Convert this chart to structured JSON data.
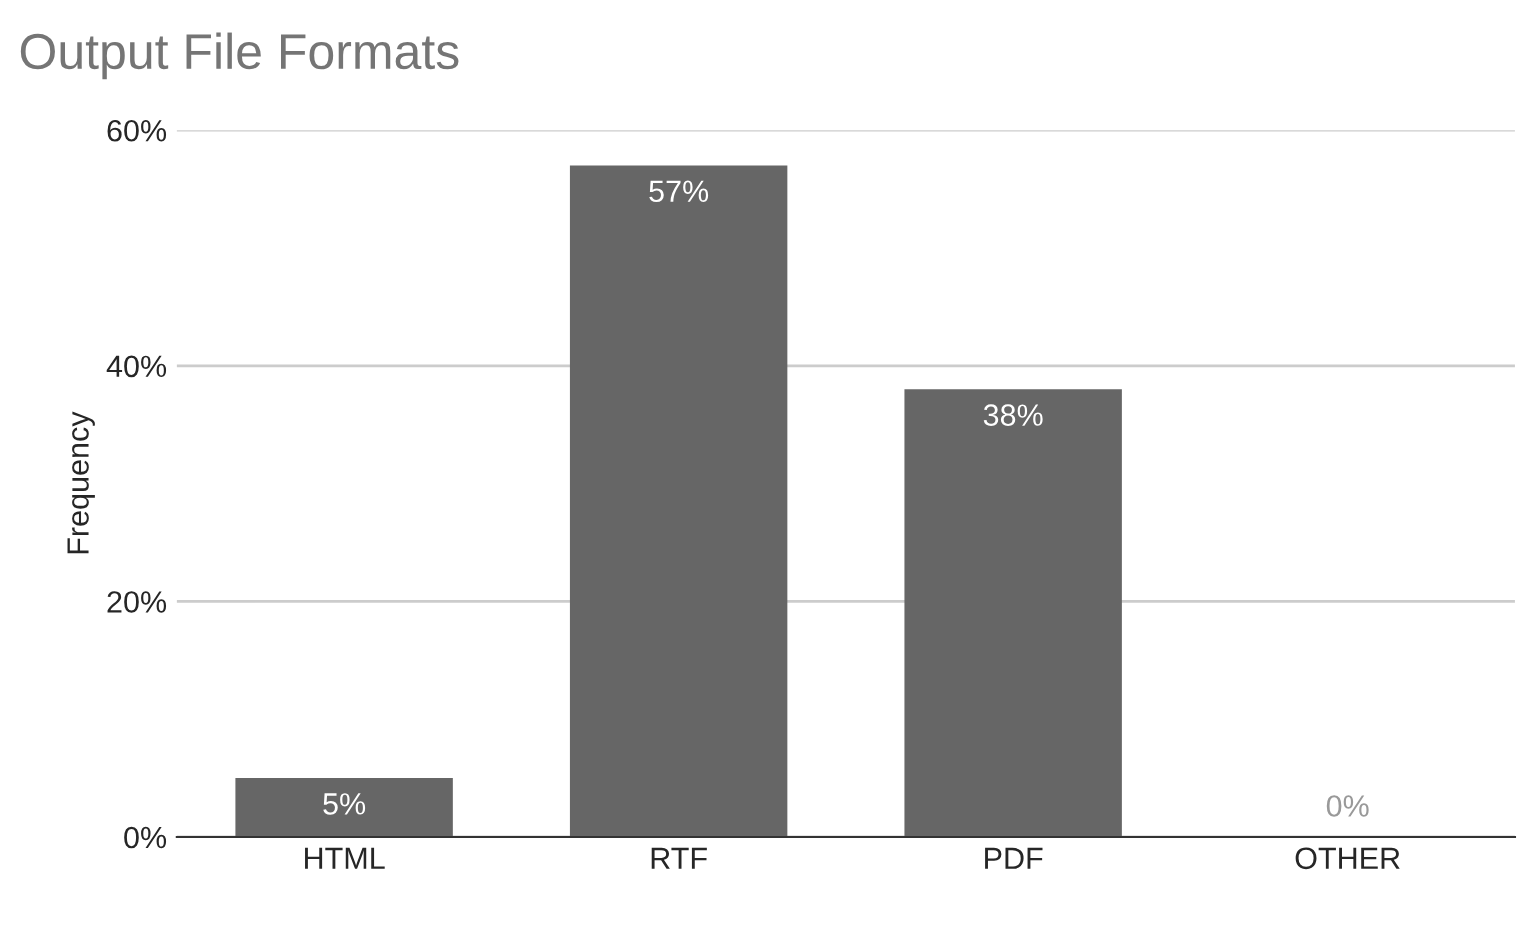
{
  "chart_data": {
    "type": "bar",
    "title": "Output File Formats",
    "ylabel": "Frequency",
    "categories": [
      "HTML",
      "RTF",
      "PDF",
      "OTHER"
    ],
    "values": [
      5,
      57,
      38,
      0
    ],
    "value_labels": [
      "5%",
      "57%",
      "38%",
      "0%"
    ],
    "color": "#666666",
    "ylim": [
      0,
      60
    ],
    "yticks": [
      {
        "value": 0,
        "label": "0%"
      },
      {
        "value": 20,
        "label": "20%"
      },
      {
        "value": 40,
        "label": "40%"
      },
      {
        "value": 60,
        "label": "60%"
      }
    ],
    "grid": "y",
    "legend": false
  }
}
